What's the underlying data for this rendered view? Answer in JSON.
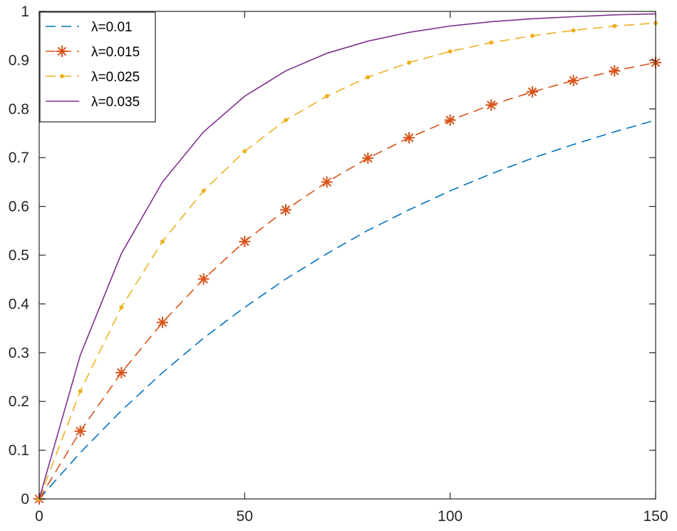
{
  "chart_data": {
    "type": "line",
    "title": "",
    "xlabel": "",
    "ylabel": "",
    "xlim": [
      0,
      150
    ],
    "ylim": [
      0,
      1
    ],
    "xticks": [
      0,
      50,
      100,
      150
    ],
    "xtick_labels": [
      "0",
      "50",
      "100",
      "150"
    ],
    "yticks": [
      0,
      0.1,
      0.2,
      0.3,
      0.4,
      0.5,
      0.6,
      0.7,
      0.8,
      0.9,
      1
    ],
    "ytick_labels": [
      "0",
      "0.1",
      "0.2",
      "0.3",
      "0.4",
      "0.5",
      "0.6",
      "0.7",
      "0.8",
      "0.9",
      "1"
    ],
    "grid": false,
    "legend_position": "top-left",
    "x": [
      0,
      10,
      20,
      30,
      40,
      50,
      60,
      70,
      80,
      90,
      100,
      110,
      120,
      130,
      140,
      150
    ],
    "series": [
      {
        "name": "λ=0.01",
        "color": "#0072BD",
        "line_style": "dashed",
        "marker": "none",
        "values": [
          0,
          0.095,
          0.181,
          0.259,
          0.33,
          0.393,
          0.451,
          0.503,
          0.551,
          0.593,
          0.632,
          0.667,
          0.699,
          0.727,
          0.753,
          0.777
        ]
      },
      {
        "name": "λ=0.015",
        "color": "#D95319",
        "line_style": "dashed",
        "marker": "asterisk",
        "values": [
          0,
          0.139,
          0.259,
          0.362,
          0.451,
          0.528,
          0.593,
          0.65,
          0.699,
          0.741,
          0.777,
          0.808,
          0.835,
          0.858,
          0.878,
          0.895
        ]
      },
      {
        "name": "λ=0.025",
        "color": "#EDB120",
        "line_style": "dashed",
        "marker": "dot",
        "values": [
          0,
          0.221,
          0.393,
          0.528,
          0.632,
          0.713,
          0.777,
          0.826,
          0.865,
          0.895,
          0.918,
          0.936,
          0.95,
          0.961,
          0.97,
          0.976
        ]
      },
      {
        "name": "λ=0.035",
        "color": "#7E2F8E",
        "line_style": "solid",
        "marker": "none",
        "values": [
          0,
          0.295,
          0.503,
          0.65,
          0.753,
          0.826,
          0.878,
          0.914,
          0.939,
          0.957,
          0.97,
          0.979,
          0.985,
          0.989,
          0.993,
          0.995
        ]
      }
    ]
  }
}
